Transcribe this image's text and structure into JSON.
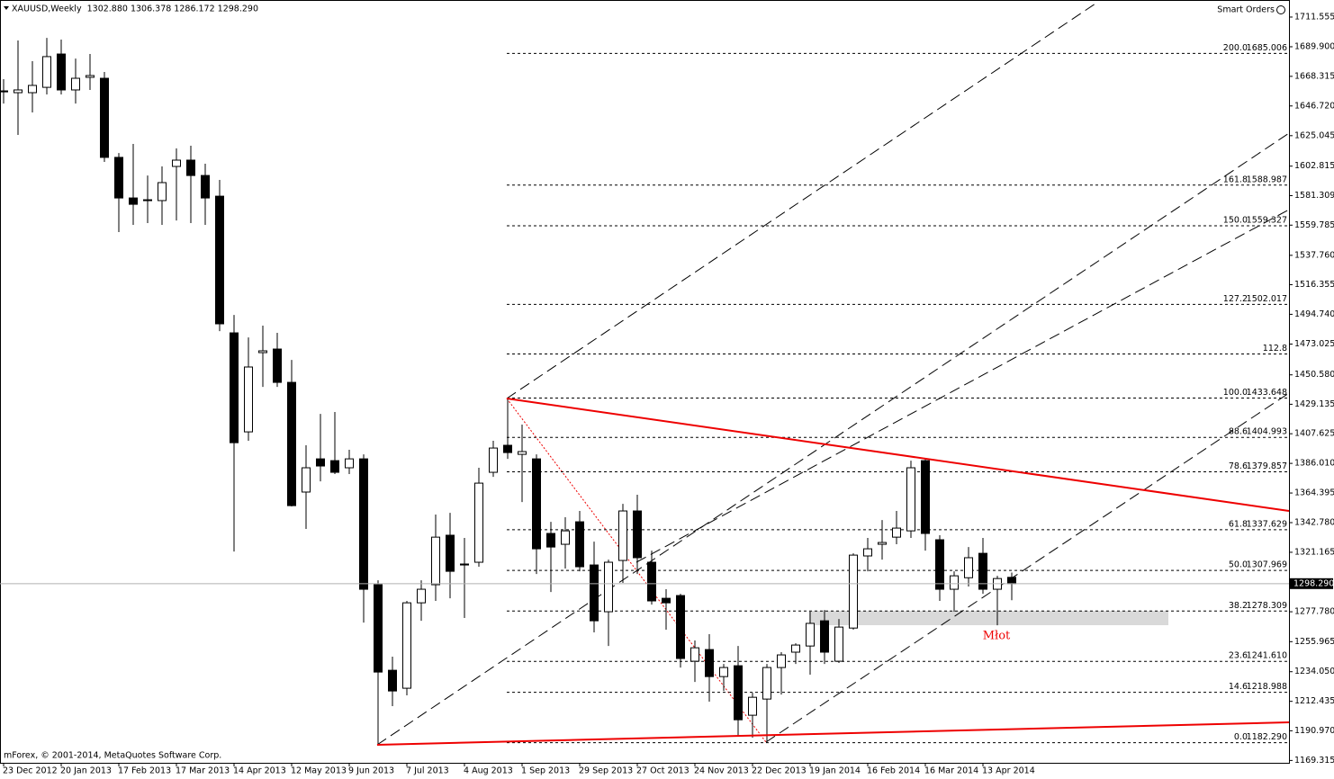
{
  "chart_data": {
    "type": "candlestick",
    "header": "XAUUSD,Weekly  1302.880 1306.378 1286.172 1298.290",
    "smart_orders": "Smart Orders",
    "copyright": "mForex, © 2001-2014, MetaQuotes Software Corp.",
    "annotation": "Młot",
    "categories": [
      "23 Dec 2012",
      null,
      null,
      null,
      "20 Jan 2013",
      null,
      null,
      null,
      "17 Feb 2013",
      null,
      null,
      null,
      "17 Mar 2013",
      null,
      null,
      null,
      "14 Apr 2013",
      null,
      null,
      null,
      "12 May 2013",
      null,
      null,
      null,
      "9 Jun 2013",
      null,
      null,
      null,
      "7 Jul 2013",
      null,
      null,
      null,
      "4 Aug 2013",
      null,
      null,
      null,
      "1 Sep 2013",
      null,
      null,
      null,
      "29 Sep 2013",
      null,
      null,
      null,
      "27 Oct 2013",
      null,
      null,
      null,
      "24 Nov 2013",
      null,
      null,
      null,
      "22 Dec 2013",
      null,
      null,
      null,
      "19 Jan 2014",
      null,
      null,
      null,
      "16 Feb 2014",
      null,
      null,
      null,
      "16 Mar 2014",
      null,
      null,
      null,
      "13 Apr 2014",
      null,
      null
    ],
    "open": [
      1657.7,
      1656.4,
      1656.4,
      1660.3,
      1684.6,
      1658.4,
      1667.6,
      1666.9,
      1609.2,
      1579.6,
      1577.7,
      1577.7,
      1602.6,
      1607.2,
      1596.0,
      1580.9,
      1481.2,
      1409.0,
      1466.8,
      1469.4,
      1445.1,
      1365.1,
      1389.3,
      1388.0,
      1382.8,
      1389.3,
      1297.5,
      1235.1,
      1222.0,
      1284.3,
      1297.5,
      1333.6,
      1312.6,
      1313.9,
      1379.5,
      1399.2,
      1392.6,
      1389.3,
      1334.9,
      1327.0,
      1343.4,
      1311.9,
      1277.8,
      1315.2,
      1351.3,
      1313.9,
      1287.6,
      1289.6,
      1241.7,
      1250.2,
      1230.5,
      1238.4,
      1202.3,
      1214.1,
      1237.1,
      1248.3,
      1252.8,
      1271.2,
      1241.7,
      1265.9,
      1318.5,
      1327.0,
      1332.2,
      1336.8,
      1388.0,
      1330.3,
      1294.2,
      1302.6,
      1320.4,
      1294.2,
      1302.88
    ],
    "high": [
      1666.3,
      1694.5,
      1679.4,
      1696.4,
      1695.1,
      1681.3,
      1684.6,
      1671.5,
      1612.4,
      1619.0,
      1596.0,
      1602.6,
      1615.7,
      1617.7,
      1604.6,
      1592.8,
      1494.3,
      1477.9,
      1486.5,
      1481.2,
      1461.5,
      1399.2,
      1422.1,
      1423.5,
      1395.9,
      1392.6,
      1300.7,
      1245.0,
      1285.7,
      1300.7,
      1348.7,
      1349.9,
      1331.6,
      1382.8,
      1402.5,
      1433.6,
      1414.3,
      1392.6,
      1343.4,
      1346.7,
      1351.3,
      1328.9,
      1315.8,
      1356.5,
      1363.1,
      1322.4,
      1294.2,
      1290.9,
      1256.8,
      1261.4,
      1239.7,
      1252.8,
      1218.7,
      1239.7,
      1248.3,
      1254.8,
      1277.8,
      1279.1,
      1272.5,
      1320.4,
      1331.6,
      1344.7,
      1351.3,
      1388.0,
      1389.3,
      1333.6,
      1307.3,
      1325.0,
      1331.6,
      1304.0,
      1306.378
    ],
    "low": [
      1648.5,
      1625.6,
      1642.0,
      1655.1,
      1655.1,
      1648.5,
      1658.4,
      1605.9,
      1554.7,
      1560.0,
      1561.3,
      1560.0,
      1563.2,
      1561.3,
      1560.0,
      1482.5,
      1321.7,
      1402.5,
      1441.8,
      1441.8,
      1354.6,
      1338.2,
      1372.9,
      1378.2,
      1378.2,
      1269.9,
      1180.7,
      1208.9,
      1216.8,
      1271.2,
      1285.7,
      1287.6,
      1273.2,
      1310.6,
      1376.2,
      1389.3,
      1357.8,
      1305.3,
      1292.2,
      1309.3,
      1307.3,
      1262.7,
      1252.8,
      1298.8,
      1305.3,
      1283.0,
      1264.7,
      1237.1,
      1226.6,
      1212.2,
      1220.0,
      1187.2,
      1185.9,
      1182.3,
      1217.4,
      1239.7,
      1231.9,
      1239.7,
      1240.4,
      1264.7,
      1307.3,
      1315.8,
      1327.0,
      1331.6,
      1322.4,
      1285.7,
      1277.8,
      1296.2,
      1290.9,
      1267.9,
      1286.172
    ],
    "close": [
      1657.0,
      1658.4,
      1661.7,
      1682.7,
      1658.4,
      1666.9,
      1668.9,
      1609.2,
      1579.6,
      1575.0,
      1578.3,
      1590.8,
      1607.2,
      1596.0,
      1579.6,
      1487.8,
      1401.1,
      1456.3,
      1468.1,
      1445.1,
      1355.2,
      1382.8,
      1384.1,
      1379.5,
      1389.3,
      1294.2,
      1233.8,
      1220.0,
      1284.3,
      1294.2,
      1332.2,
      1307.3,
      1311.9,
      1371.6,
      1397.2,
      1393.9,
      1394.6,
      1323.7,
      1325.0,
      1336.8,
      1310.6,
      1271.2,
      1313.9,
      1351.3,
      1317.2,
      1285.7,
      1284.3,
      1243.7,
      1251.5,
      1230.5,
      1237.1,
      1199.0,
      1215.4,
      1237.1,
      1246.3,
      1253.5,
      1269.3,
      1248.3,
      1266.6,
      1319.1,
      1323.7,
      1328.3,
      1338.8,
      1382.8,
      1334.9,
      1294.2,
      1304.0,
      1317.2,
      1294.2,
      1302.0,
      1298.29
    ],
    "up_color": "#ffffff",
    "down_color": "#000000",
    "ylim": [
      1167.6,
      1724.0
    ],
    "yticks": [
      1711.555,
      {
        "value": 1689.9,
        "label": "1689.900"
      },
      1668.315,
      {
        "value": 1646.72,
        "label": "1646.720"
      },
      1625.045,
      1602.815,
      1581.309,
      1559.785,
      {
        "value": 1537.76,
        "label": "1537.760"
      },
      1516.355,
      {
        "value": 1494.74,
        "label": "1494.740"
      },
      1473.025,
      {
        "value": 1450.58,
        "label": "1450.580"
      },
      1429.135,
      1407.625,
      {
        "value": 1386.01,
        "label": "1386.010"
      },
      1364.395,
      {
        "value": 1342.78,
        "label": "1342.780"
      },
      1321.165,
      {
        "value": 1277.78,
        "label": "1277.780"
      },
      1255.965,
      {
        "value": 1234.05,
        "label": "1234.050"
      },
      1212.435,
      {
        "value": 1190.97,
        "label": "1190.970"
      },
      1169.315
    ],
    "current_price": {
      "value": 1298.29,
      "label": "1298.290"
    },
    "fib_levels": [
      {
        "level": "200.0",
        "price": 1685.006
      },
      {
        "level": "161.8",
        "price": 1588.987
      },
      {
        "level": "150.0",
        "price": 1559.327
      },
      {
        "level": "127.2",
        "price": 1502.017
      },
      {
        "level": "112.8",
        "line": 1465.8
      },
      {
        "level": "100.0",
        "price": 1433.648
      },
      {
        "level": "88.6",
        "price": 1404.993
      },
      {
        "level": "78.6",
        "price": 1379.857
      },
      {
        "level": "61.8",
        "price": 1337.629
      },
      {
        "level": "50.0",
        "price": 1307.969
      },
      {
        "level": "38.2",
        "price": 1278.309
      },
      {
        "level": "23.6",
        "price": {
          "value": 1241.61,
          "label": "1241.610"
        }
      },
      {
        "level": "14.6",
        "price": 1218.988
      },
      {
        "level": "0.0",
        "price": {
          "value": 1182.29,
          "label": "1182.290"
        }
      }
    ]
  }
}
